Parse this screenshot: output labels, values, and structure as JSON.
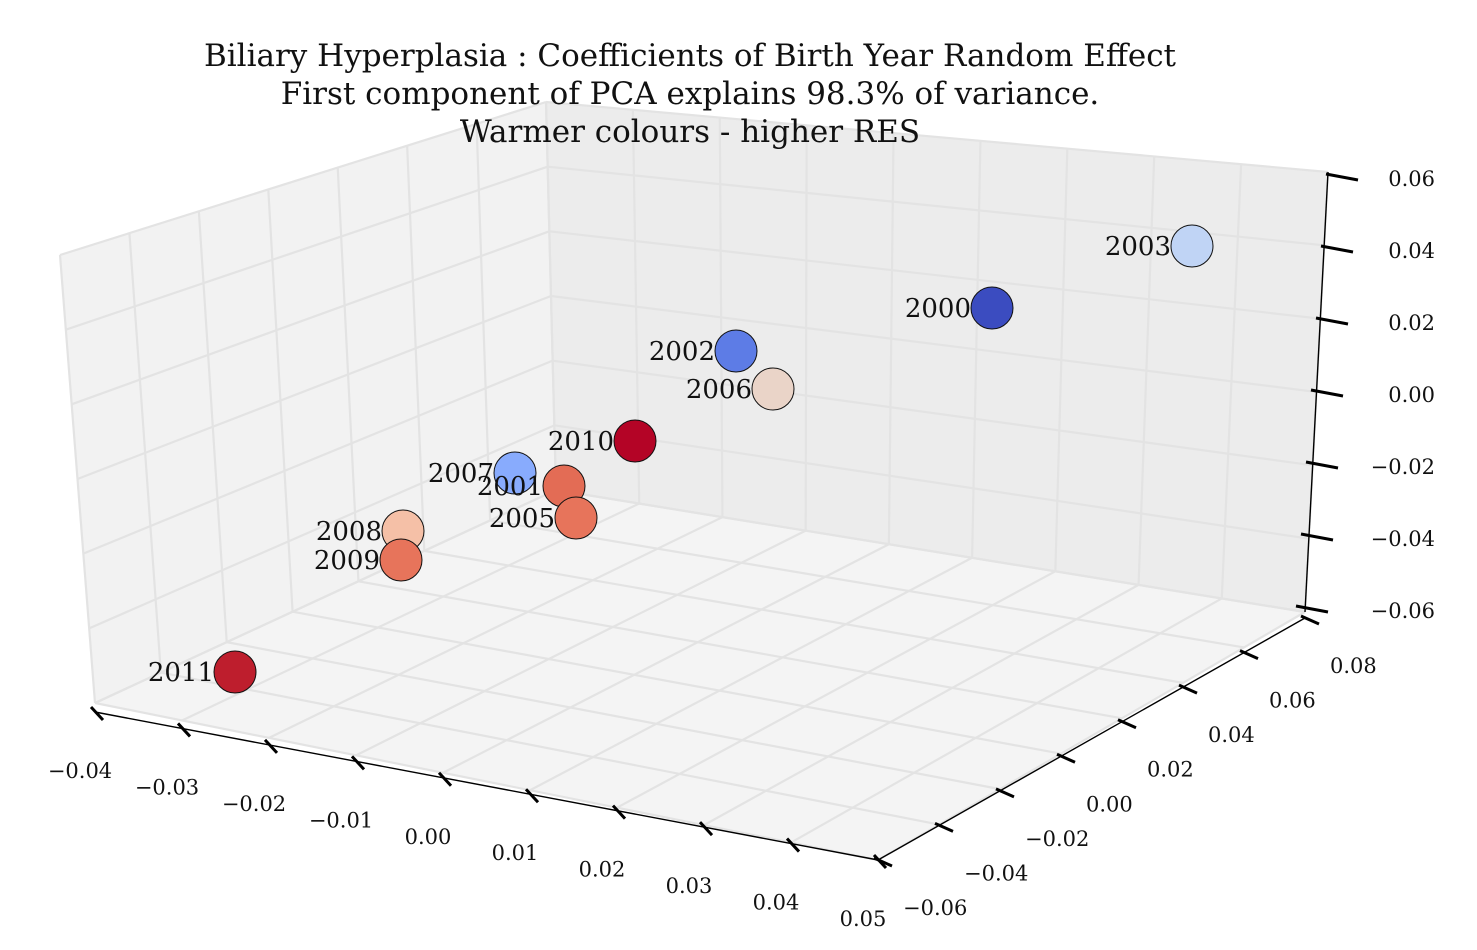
{
  "chart_data": {
    "type": "scatter3d",
    "title_lines": [
      "Biliary Hyperplasia : Coefficients of Birth Year Random Effect",
      "First component of PCA explains 98.3% of variance.",
      "Warmer colours - higher RES"
    ],
    "x_axis": {
      "ticks": [
        "−0.04",
        "−0.03",
        "−0.02",
        "−0.01",
        "0.00",
        "0.01",
        "0.02",
        "0.03",
        "0.04",
        "0.05"
      ],
      "range": [
        -0.04,
        0.05
      ]
    },
    "y_axis": {
      "ticks": [
        "−0.06",
        "−0.04",
        "−0.02",
        "0.00",
        "0.02",
        "0.04",
        "0.06",
        "0.08"
      ],
      "range": [
        -0.06,
        0.08
      ]
    },
    "z_axis": {
      "ticks": [
        "−0.06",
        "−0.04",
        "−0.02",
        "0.00",
        "0.02",
        "0.04",
        "0.06"
      ],
      "range": [
        -0.06,
        0.06
      ]
    },
    "grid": true,
    "colormap": "coolwarm",
    "points": [
      {
        "label": "2000",
        "color": "#3b4cc0"
      },
      {
        "label": "2001",
        "color": "#e36c55"
      },
      {
        "label": "2002",
        "color": "#5d7ce6"
      },
      {
        "label": "2003",
        "color": "#c0d4f5"
      },
      {
        "label": "2005",
        "color": "#e7745b"
      },
      {
        "label": "2006",
        "color": "#ead4c8"
      },
      {
        "label": "2007",
        "color": "#88abfd"
      },
      {
        "label": "2008",
        "color": "#f5c0a7"
      },
      {
        "label": "2009",
        "color": "#e7745b"
      },
      {
        "label": "2010",
        "color": "#b40426"
      },
      {
        "label": "2011",
        "color": "#be1e2d"
      }
    ]
  }
}
